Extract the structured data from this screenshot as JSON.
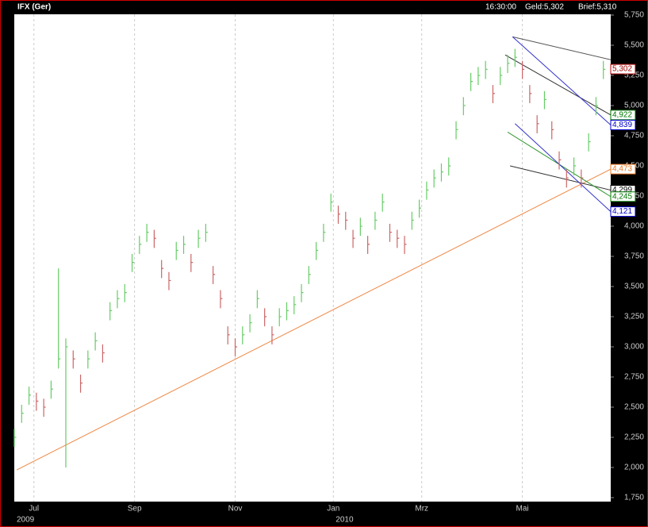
{
  "chart_data": {
    "type": "ohlc",
    "title": "IFX (Ger)",
    "header": [
      "16:30:00",
      "Geld:5,302",
      "Brief:5,310"
    ],
    "x": [
      0,
      3,
      6,
      9,
      12,
      15,
      18,
      21,
      24,
      27,
      30,
      33,
      36,
      39,
      42,
      45,
      48,
      51,
      54,
      57,
      60,
      63,
      66,
      69,
      72,
      75,
      78,
      81,
      84,
      87,
      90,
      93,
      96,
      99,
      102,
      105,
      108,
      111,
      114,
      117,
      120,
      123,
      126,
      129,
      132,
      135,
      138,
      141,
      144,
      147,
      150,
      153,
      156,
      159,
      162,
      165,
      168,
      171,
      174,
      177,
      180,
      183,
      186,
      189,
      192,
      195,
      198,
      201,
      204,
      207,
      210,
      213,
      216,
      219,
      222,
      225,
      228,
      231,
      234,
      237,
      240
    ],
    "high": [
      2320,
      2520,
      2670,
      2620,
      2570,
      2720,
      3650,
      3070,
      2970,
      2770,
      2970,
      3120,
      3020,
      3370,
      3470,
      3520,
      3770,
      3920,
      4020,
      3970,
      3720,
      3620,
      3870,
      3920,
      3770,
      3970,
      4020,
      3670,
      3470,
      3170,
      3070,
      3170,
      3270,
      3470,
      3320,
      3170,
      3320,
      3370,
      3420,
      3520,
      3670,
      3870,
      4020,
      4270,
      4170,
      4120,
      3970,
      4070,
      3920,
      4120,
      4270,
      4020,
      3970,
      3920,
      4120,
      4220,
      4370,
      4470,
      4520,
      4570,
      4870,
      5070,
      5270,
      5320,
      5370,
      5170,
      5320,
      5420,
      5470,
      5370,
      5170,
      4920,
      5120,
      4870,
      4620,
      4470,
      4570,
      4470,
      4770,
      5070,
      5370
    ],
    "low": [
      2170,
      2370,
      2520,
      2470,
      2420,
      2570,
      2820,
      2000,
      2820,
      2620,
      2820,
      2970,
      2870,
      3220,
      3320,
      3370,
      3620,
      3770,
      3870,
      3820,
      3570,
      3470,
      3720,
      3770,
      3620,
      3820,
      3870,
      3520,
      3320,
      3020,
      2920,
      3020,
      3120,
      3320,
      3170,
      3020,
      3170,
      3220,
      3270,
      3370,
      3520,
      3720,
      3870,
      4120,
      4020,
      3970,
      3820,
      3920,
      3770,
      3970,
      4120,
      3870,
      3820,
      3770,
      3970,
      4070,
      4220,
      4320,
      4370,
      4420,
      4720,
      4920,
      5120,
      5170,
      5220,
      5020,
      5170,
      5270,
      5320,
      5220,
      5020,
      4770,
      4970,
      4720,
      4470,
      4320,
      4420,
      4320,
      4620,
      4920,
      5220
    ],
    "close": [
      2250,
      2450,
      2600,
      2550,
      2500,
      2650,
      2900,
      3000,
      2900,
      2700,
      2900,
      3050,
      2950,
      3300,
      3400,
      3450,
      3700,
      3850,
      3950,
      3900,
      3650,
      3550,
      3800,
      3850,
      3700,
      3900,
      3950,
      3600,
      3400,
      3100,
      3000,
      3100,
      3200,
      3400,
      3250,
      3100,
      3250,
      3300,
      3350,
      3450,
      3600,
      3800,
      3950,
      4200,
      4100,
      4050,
      3900,
      4000,
      3850,
      4050,
      4200,
      3950,
      3900,
      3850,
      4050,
      4150,
      4300,
      4400,
      4450,
      4500,
      4800,
      5000,
      5200,
      5250,
      5300,
      5100,
      5250,
      5350,
      5400,
      5300,
      5100,
      4850,
      5050,
      4800,
      4550,
      4400,
      4500,
      4400,
      4700,
      5000,
      5300
    ],
    "up_color": "#66cc66",
    "down_color": "#cc6666",
    "xlim": [
      0,
      243
    ],
    "ylim": [
      1750,
      5750
    ],
    "xticks": [
      {
        "value": 8,
        "label": "Jul"
      },
      {
        "value": 49,
        "label": "Sep"
      },
      {
        "value": 90,
        "label": "Nov"
      },
      {
        "value": 130,
        "label": "Jan"
      },
      {
        "value": 166,
        "label": "Mrz"
      },
      {
        "value": 207,
        "label": "Mai"
      }
    ],
    "year_labels": [
      {
        "value": 0,
        "label": "2009"
      },
      {
        "value": 130,
        "label": "2010"
      }
    ],
    "yticks": [
      {
        "value": 1750,
        "label": "1,750"
      },
      {
        "value": 2000,
        "label": "2,000"
      },
      {
        "value": 2250,
        "label": "2,250"
      },
      {
        "value": 2500,
        "label": "2,500"
      },
      {
        "value": 2750,
        "label": "2,750"
      },
      {
        "value": 3000,
        "label": "3,000"
      },
      {
        "value": 3250,
        "label": "3,250"
      },
      {
        "value": 3500,
        "label": "3,500"
      },
      {
        "value": 3750,
        "label": "3,750"
      },
      {
        "value": 4000,
        "label": "4,000"
      },
      {
        "value": 4250,
        "label": "4,250"
      },
      {
        "value": 4500,
        "label": "4,500"
      },
      {
        "value": 4750,
        "label": "4,750"
      },
      {
        "value": 5000,
        "label": "5,000"
      },
      {
        "value": 5250,
        "label": "5,250"
      },
      {
        "value": 5500,
        "label": "5,500"
      },
      {
        "value": 5750,
        "label": "5,750"
      }
    ],
    "grid": true,
    "last_price": {
      "value": 5302,
      "label": "5,302",
      "color": "#aa0000"
    },
    "trend_lines": [
      {
        "color": "#555555",
        "start": [
          203,
          5570
        ],
        "end": [
          243,
          5380
        ]
      },
      {
        "color": "#333333",
        "start": [
          200,
          5420
        ],
        "end": [
          243,
          4922
        ],
        "value": 4922,
        "label": "4,922",
        "label_color": "#007700"
      },
      {
        "color": "#3333cc",
        "start": [
          203,
          5570
        ],
        "end": [
          243,
          4839
        ],
        "value": 4839,
        "label": "4,839",
        "label_color": "#0000cc"
      },
      {
        "color": "#ee8844",
        "start": [
          1,
          1980
        ],
        "end": [
          243,
          4473
        ],
        "value": 4473,
        "label": "4,473",
        "label_color": "#ee7722"
      },
      {
        "color": "#333333",
        "start": [
          202,
          4500
        ],
        "end": [
          243,
          4299
        ],
        "value": 4299,
        "label": "4,299",
        "label_color": "#000000"
      },
      {
        "color": "#339933",
        "start": [
          201,
          4780
        ],
        "end": [
          243,
          4245
        ],
        "value": 4245,
        "label": "4,245",
        "label_color": "#007700"
      },
      {
        "color": "#3333cc",
        "start": [
          204,
          4850
        ],
        "end": [
          243,
          4121
        ],
        "value": 4121,
        "label": "4,121",
        "label_color": "#0000cc"
      }
    ]
  }
}
